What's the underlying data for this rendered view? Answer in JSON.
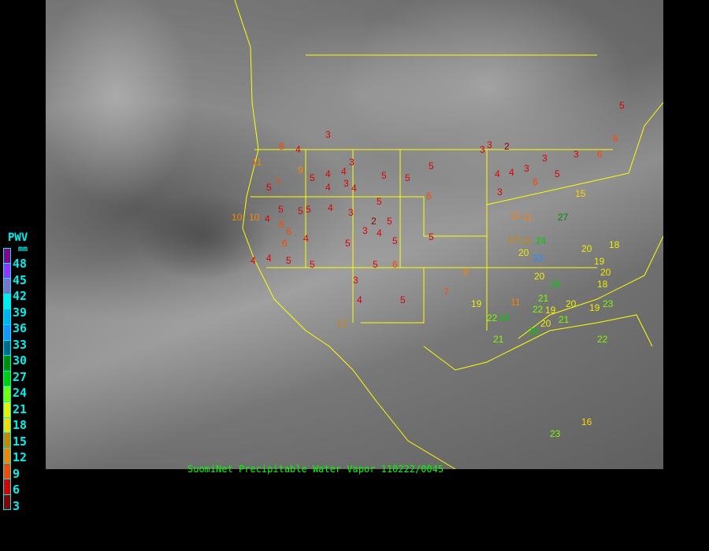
{
  "caption": "SuomiNet Precipitable Water Vapor 110222/0045",
  "legend": {
    "title": "PWV",
    "unit": "mm",
    "ticks": [
      "48",
      "45",
      "42",
      "39",
      "36",
      "33",
      "30",
      "27",
      "24",
      "21",
      "18",
      "15",
      "12",
      "9",
      "6",
      "3"
    ],
    "colors": [
      "#8b008b",
      "#9b30ff",
      "#8470c8",
      "#00eeee",
      "#00b2ee",
      "#1e90ff",
      "#00688b",
      "#008b00",
      "#00cd00",
      "#7cfc00",
      "#eeee00",
      "#ffd700",
      "#cd8500",
      "#ff8000",
      "#ff4500",
      "#dd0000",
      "#8b0000"
    ]
  },
  "stations": [
    "3",
    "8",
    "4",
    "4",
    "5",
    "3",
    "4",
    "3",
    "5",
    "5",
    "5",
    "3",
    "2",
    "3",
    "3",
    "3",
    "5",
    "6",
    "6",
    "5",
    "4",
    "4",
    "5",
    "5",
    "6",
    "7",
    "9",
    "11",
    "10",
    "10",
    "4",
    "6",
    "5",
    "4",
    "3",
    "3",
    "5",
    "4",
    "5",
    "5",
    "6",
    "11",
    "13",
    "24",
    "33",
    "20",
    "21",
    "19",
    "20",
    "19",
    "3",
    "4",
    "6",
    "5",
    "4",
    "3",
    "5",
    "5",
    "2",
    "4",
    "6",
    "4",
    "4",
    "5",
    "5",
    "5",
    "6",
    "9",
    "11",
    "19",
    "22",
    "24",
    "26",
    "20",
    "21",
    "18",
    "20",
    "15",
    "22",
    "13",
    "11",
    "21",
    "23",
    "16",
    "20",
    "22",
    "3",
    "12",
    "4",
    "5",
    "7",
    "18",
    "19",
    "20",
    "23",
    "27",
    "24"
  ]
}
